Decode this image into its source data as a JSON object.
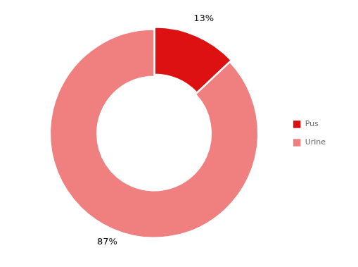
{
  "chart_data": {
    "type": "donut",
    "categories": [
      "Pus",
      "Urine"
    ],
    "values": [
      13,
      87
    ],
    "value_labels": [
      "13%",
      "87%"
    ],
    "colors": [
      "#dd1111",
      "#f08080"
    ],
    "data_labels": true,
    "legend": "right"
  }
}
